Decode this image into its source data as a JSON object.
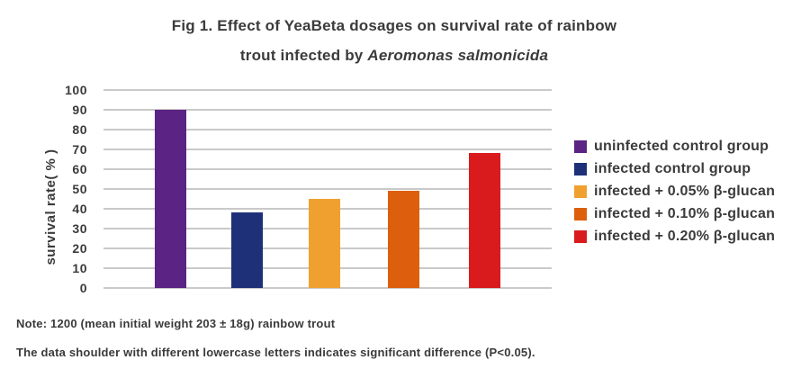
{
  "title": {
    "line1": "Fig 1. Effect of YeaBeta dosages on survival rate of rainbow",
    "line2_prefix": "trout infected by ",
    "line2_species": "Aeromonas salmonicida"
  },
  "y_axis": {
    "label": "survival rate( % )",
    "ticks": [
      "100",
      "90",
      "80",
      "70",
      "60",
      "50",
      "40",
      "30",
      "20",
      "10",
      "0"
    ]
  },
  "chart_data": {
    "type": "bar",
    "title": "Fig 1. Effect of YeaBeta dosages on survival rate of rainbow trout infected by Aeromonas salmonicida",
    "categories": [
      "uninfected control group",
      "infected control group",
      "infected + 0.05% β-glucan",
      "infected + 0.10% β-glucan",
      "infected + 0.20% β-glucan"
    ],
    "values": [
      90,
      38,
      45,
      49,
      68
    ],
    "colors": [
      "#5B2383",
      "#1E3178",
      "#F0A02F",
      "#DD5F0E",
      "#D91B1E"
    ],
    "xlabel": "",
    "ylabel": "survival rate( % )",
    "ylim": [
      0,
      100
    ],
    "ytick_step": 10,
    "grid": true,
    "legend_position": "right"
  },
  "legend": {
    "items": [
      {
        "label": "uninfected control group",
        "color": "#5B2383"
      },
      {
        "label": "infected control group",
        "color": "#1E3178"
      },
      {
        "label": "infected + 0.05% β-glucan",
        "color": "#F0A02F"
      },
      {
        "label": "infected + 0.10% β-glucan",
        "color": "#DD5F0E"
      },
      {
        "label": "infected + 0.20% β-glucan",
        "color": "#D91B1E"
      }
    ]
  },
  "notes": {
    "line1": "Note: 1200 (mean initial weight 203 ± 18g) rainbow trout",
    "line2": "The data shoulder with different lowercase letters indicates significant difference (P<0.05)."
  },
  "colors": {
    "text": "#3B3B3B",
    "gridline": "#C9C9C9",
    "background": "#FFFFFF"
  }
}
